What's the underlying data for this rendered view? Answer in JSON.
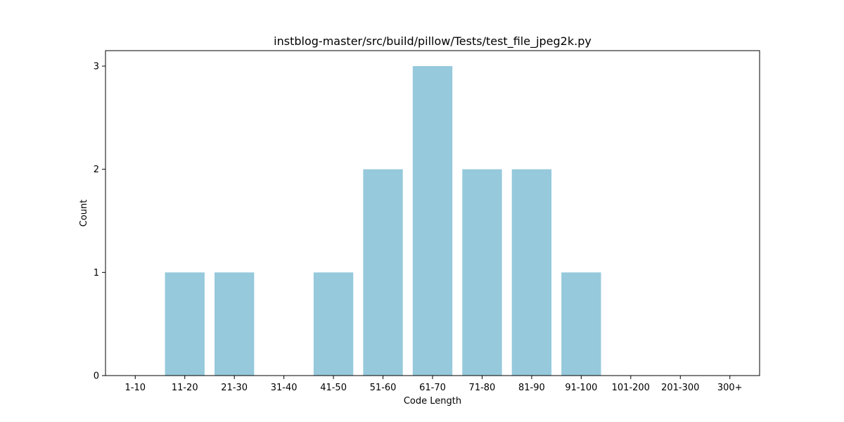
{
  "chart_data": {
    "type": "bar",
    "title": "instblog-master/src/build/pillow/Tests/test_file_jpeg2k.py",
    "xlabel": "Code Length",
    "ylabel": "Count",
    "categories": [
      "1-10",
      "11-20",
      "21-30",
      "31-40",
      "41-50",
      "51-60",
      "61-70",
      "71-80",
      "81-90",
      "91-100",
      "101-200",
      "201-300",
      "300+"
    ],
    "values": [
      0,
      1,
      1,
      0,
      1,
      2,
      3,
      2,
      2,
      1,
      0,
      0,
      0
    ],
    "yticks": [
      "0",
      "1",
      "2",
      "3"
    ],
    "ylim": [
      0,
      3.15
    ],
    "grid": false,
    "bar_color": "#96c9dc"
  }
}
